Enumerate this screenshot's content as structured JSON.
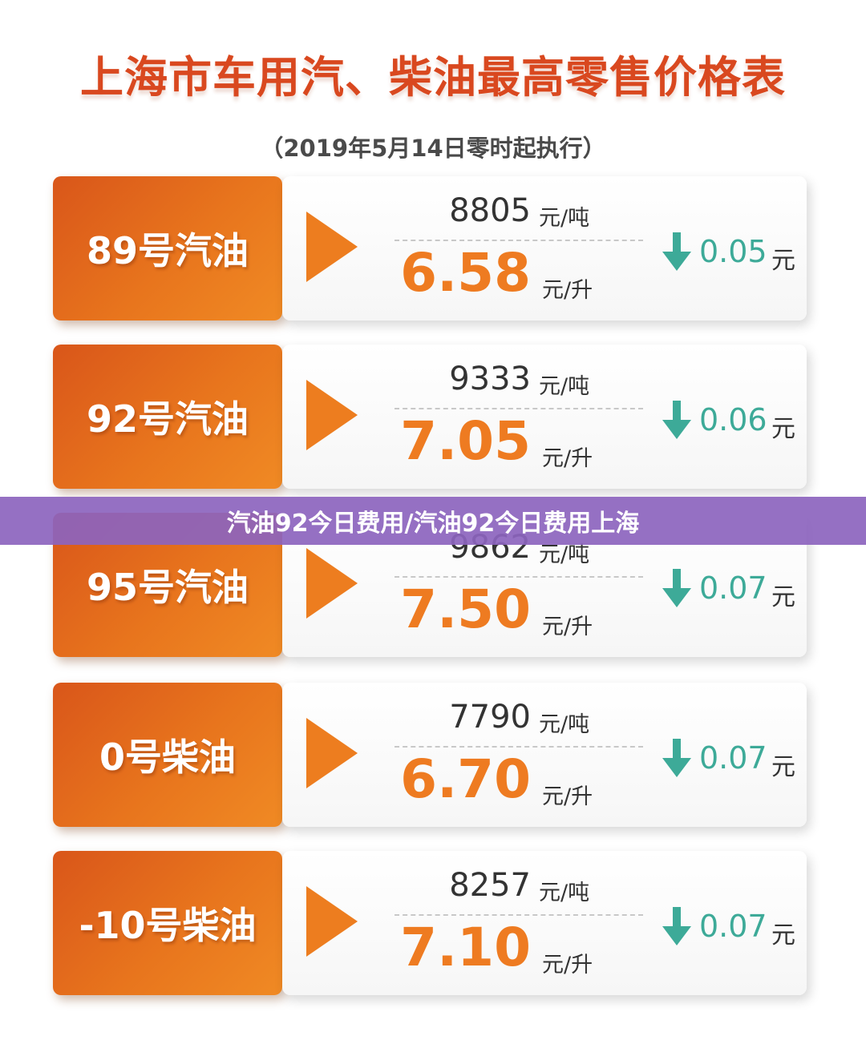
{
  "title": "上海市车用汽、柴油最高零售价格表",
  "subtitle": "（2019年5月14日零时起执行）",
  "banner": "汽油92今日费用/汽油92今日费用上海",
  "units": {
    "per_ton": "元/吨",
    "per_liter": "元/升",
    "change": "元"
  },
  "colors": {
    "title": "#d9481f",
    "label_bg": "#e8751d",
    "liter_price": "#ee7b21",
    "decrease": "#3daa98",
    "banner": "#8c64be"
  },
  "icons": {
    "play": "play-arrow-icon",
    "decrease": "down-arrow-icon"
  },
  "fuels": [
    {
      "name": "89号汽油",
      "price_ton": "8805",
      "price_liter": "6.58",
      "change": "0.05"
    },
    {
      "name": "92号汽油",
      "price_ton": "9333",
      "price_liter": "7.05",
      "change": "0.06"
    },
    {
      "name": "95号汽油",
      "price_ton": "9862",
      "price_liter": "7.50",
      "change": "0.07"
    },
    {
      "name": "0号柴油",
      "price_ton": "7790",
      "price_liter": "6.70",
      "change": "0.07"
    },
    {
      "name": "-10号柴油",
      "price_ton": "8257",
      "price_liter": "7.10",
      "change": "0.07"
    }
  ]
}
